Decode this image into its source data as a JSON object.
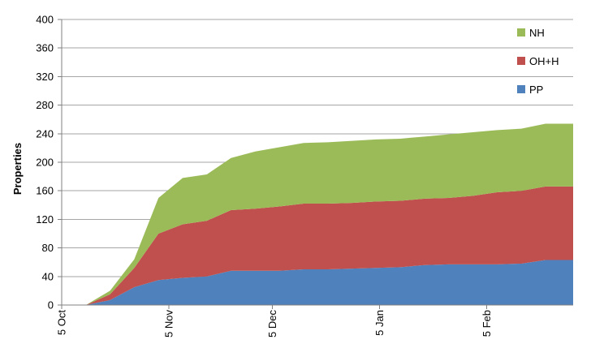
{
  "chart_data": {
    "type": "area",
    "stacked": true,
    "title": "",
    "xlabel": "",
    "ylabel": "Properties",
    "ylim": [
      0,
      400
    ],
    "yticks": [
      0,
      40,
      80,
      120,
      160,
      200,
      240,
      280,
      320,
      360,
      400
    ],
    "xlim": [
      "2011-10-05",
      "2012-03-01"
    ],
    "xticks": [
      {
        "date": "2011-10-05",
        "label": "5 Oct"
      },
      {
        "date": "2011-11-05",
        "label": "5 Nov"
      },
      {
        "date": "2011-12-05",
        "label": "5 Dec"
      },
      {
        "date": "2012-01-05",
        "label": "5 Jan"
      },
      {
        "date": "2012-02-05",
        "label": "5 Feb"
      }
    ],
    "grid": "horizontal",
    "legend_position": "top-right",
    "x": [
      "2011-10-12",
      "2011-10-19",
      "2011-10-26",
      "2011-11-02",
      "2011-11-09",
      "2011-11-16",
      "2011-11-23",
      "2011-11-30",
      "2011-12-07",
      "2011-12-14",
      "2011-12-21",
      "2011-12-28",
      "2012-01-04",
      "2012-01-11",
      "2012-01-18",
      "2012-01-25",
      "2012-02-01",
      "2012-02-08",
      "2012-02-15",
      "2012-02-22",
      "2012-03-01"
    ],
    "series": [
      {
        "name": "PP",
        "color": "#4f81bd",
        "values": [
          0,
          7,
          25,
          35,
          38,
          40,
          48,
          48,
          48,
          50,
          50,
          51,
          52,
          53,
          56,
          57,
          57,
          57,
          58,
          63,
          63
        ]
      },
      {
        "name": "OH+H",
        "color": "#c0504d",
        "values": [
          0,
          8,
          27,
          65,
          75,
          78,
          85,
          87,
          90,
          92,
          92,
          92,
          93,
          93,
          93,
          93,
          96,
          101,
          102,
          103,
          103
        ]
      },
      {
        "name": "NH",
        "color": "#9bbb59",
        "values": [
          0,
          5,
          12,
          50,
          65,
          65,
          73,
          80,
          83,
          85,
          86,
          87,
          87,
          87,
          87,
          89,
          89,
          87,
          87,
          88,
          88
        ]
      }
    ],
    "legend_order": [
      "NH",
      "OH+H",
      "PP"
    ]
  }
}
